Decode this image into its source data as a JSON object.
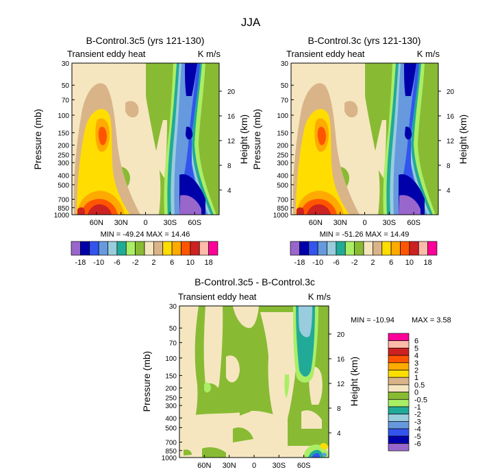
{
  "figure_title": "JJA",
  "palette": {
    "c1": "#9966cc",
    "c2": "#0000aa",
    "c3": "#3355ee",
    "c4": "#6699dd",
    "c5": "#99ccdd",
    "c6": "#22aa99",
    "c7": "#aaee66",
    "c8": "#88bb33",
    "c9": "#f5e6c0",
    "c10": "#d9b488",
    "c11": "#ffdd00",
    "c12": "#ffaa00",
    "c13": "#ff5500",
    "c14": "#cc2222",
    "c15": "#ffbbaa",
    "c16": "#ff0099"
  },
  "chart_data": [
    {
      "type": "contour",
      "title": "B-Control.3c5 (yrs 121-130)",
      "subtitle_left": "Transient eddy heat",
      "subtitle_right": "K m/s",
      "ylabel": "Pressure (mb)",
      "ylabel_right": "Height (km)",
      "x_ticks": [
        "60N",
        "30N",
        "0",
        "30S",
        "60S"
      ],
      "y_ticks": [
        "30",
        "50",
        "70",
        "100",
        "150",
        "200",
        "250",
        "300",
        "400",
        "500",
        "700",
        "850",
        "1000"
      ],
      "height_ticks": [
        "20",
        "16",
        "12",
        "8",
        "4"
      ],
      "min_label": "MIN = -49.24",
      "max_label": "MAX =  14.46",
      "colorbar_labels": [
        "-18",
        "-10",
        "-6",
        "-2",
        "2",
        "6",
        "10",
        "18"
      ]
    },
    {
      "type": "contour",
      "title": "B-Control.3c (yrs 121-130)",
      "subtitle_left": "Transient eddy heat",
      "subtitle_right": "K m/s",
      "ylabel": "Pressure (mb)",
      "ylabel_right": "Height (km)",
      "x_ticks": [
        "60N",
        "30N",
        "0",
        "30S",
        "60S"
      ],
      "y_ticks": [
        "30",
        "50",
        "70",
        "100",
        "150",
        "200",
        "250",
        "300",
        "400",
        "500",
        "700",
        "850",
        "1000"
      ],
      "height_ticks": [
        "20",
        "16",
        "12",
        "8",
        "4"
      ],
      "min_label": "MIN = -51.26",
      "max_label": "MAX =  14.49",
      "colorbar_labels": [
        "-18",
        "-10",
        "-6",
        "-2",
        "2",
        "6",
        "10",
        "18"
      ]
    },
    {
      "type": "contour",
      "title": "B-Control.3c5 - B-Control.3c",
      "subtitle_left": "Transient eddy heat",
      "subtitle_right": "K m/s",
      "ylabel": "Pressure (mb)",
      "ylabel_right": "Height (km)",
      "x_ticks": [
        "60N",
        "30N",
        "0",
        "30S",
        "60S"
      ],
      "y_ticks": [
        "30",
        "50",
        "70",
        "100",
        "150",
        "200",
        "250",
        "300",
        "400",
        "500",
        "700",
        "850",
        "1000"
      ],
      "height_ticks": [
        "20",
        "16",
        "12",
        "8",
        "4"
      ],
      "min_label": "MIN = -10.94",
      "max_label": "MAX =    3.58",
      "colorbar_labels": [
        "6",
        "5",
        "4",
        "3",
        "2",
        "1",
        "0.5",
        "0",
        "-0.5",
        "-1",
        "-2",
        "-3",
        "-4",
        "-5",
        "-6"
      ]
    }
  ]
}
